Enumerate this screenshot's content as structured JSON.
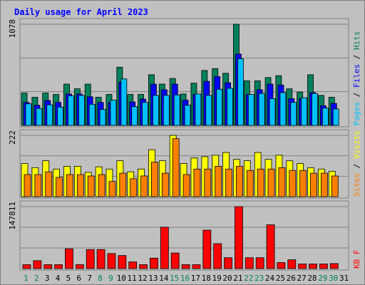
{
  "chart_data": {
    "type": "bar",
    "title": "Daily usage for April 2023",
    "categories": [
      "1",
      "2",
      "3",
      "4",
      "5",
      "6",
      "7",
      "8",
      "9",
      "10",
      "11",
      "12",
      "13",
      "14",
      "15",
      "16",
      "17",
      "18",
      "19",
      "20",
      "21",
      "22",
      "23",
      "24",
      "25",
      "26",
      "27",
      "28",
      "29",
      "30",
      "31"
    ],
    "weekend_days": [
      1,
      2,
      8,
      9,
      15,
      16,
      22,
      23,
      29,
      30
    ],
    "colors": {
      "hits": "#00805c",
      "files": "#0000ff",
      "pages": "#00c0ff",
      "visits": "#ffff00",
      "sites": "#ff8000",
      "kbytes": "#ff0000",
      "title": "#0000ff",
      "weekend_label": "#00805c",
      "weekday_label": "#000000"
    },
    "panels": [
      {
        "id": "hits",
        "ymax_label": "1078",
        "ymax": 1078,
        "axis_label_parts": [
          {
            "text": "Pages",
            "color": "#00c0ff"
          },
          {
            "text": " / ",
            "color": "#000000"
          },
          {
            "text": "Files",
            "color": "#0000ff"
          },
          {
            "text": " / ",
            "color": "#000000"
          },
          {
            "text": "Hits",
            "color": "#00805c"
          }
        ],
        "series": [
          {
            "name": "Hits",
            "color": "#00805c",
            "values": [
              345,
              300,
              345,
              330,
              440,
              390,
              440,
              300,
              330,
              620,
              330,
              330,
              540,
              440,
              500,
              335,
              450,
              585,
              605,
              555,
              1078,
              475,
              475,
              510,
              530,
              390,
              355,
              540,
              320,
              300,
              0
            ]
          },
          {
            "name": "Files",
            "color": "#0000ff",
            "values": [
              245,
              215,
              265,
              245,
              335,
              335,
              305,
              245,
              245,
              460,
              250,
              280,
              440,
              380,
              440,
              270,
              330,
              470,
              520,
              455,
              760,
              330,
              380,
              440,
              430,
              285,
              285,
              350,
              210,
              235,
              0
            ]
          },
          {
            "name": "Pages",
            "color": "#00c0ff",
            "values": [
              230,
              180,
              220,
              195,
              315,
              320,
              225,
              170,
              270,
              495,
              200,
              245,
              320,
              320,
              325,
              215,
              335,
              320,
              385,
              395,
              710,
              330,
              340,
              285,
              350,
              245,
              295,
              340,
              185,
              175,
              0
            ]
          }
        ]
      },
      {
        "id": "visits",
        "ymax_label": "222",
        "ymax": 222,
        "axis_label_parts": [
          {
            "text": "Sites",
            "color": "#ff8000"
          },
          {
            "text": " / ",
            "color": "#000000"
          },
          {
            "text": "Visits",
            "color": "#ffff00"
          }
        ],
        "series": [
          {
            "name": "Visits",
            "color": "#ffff00",
            "values": [
              120,
              105,
              130,
              100,
              110,
              110,
              88,
              108,
              100,
              130,
              90,
              100,
              170,
              130,
              222,
              120,
              140,
              145,
              150,
              160,
              135,
              130,
              160,
              135,
              150,
              130,
              120,
              105,
              100,
              92,
              0
            ]
          },
          {
            "name": "Sites",
            "color": "#ff8000",
            "values": [
              80,
              80,
              90,
              70,
              80,
              80,
              75,
              80,
              55,
              85,
              65,
              75,
              125,
              85,
              210,
              80,
              100,
              100,
              110,
              100,
              110,
              95,
              100,
              100,
              105,
              95,
              95,
              85,
              85,
              75,
              0
            ]
          }
        ]
      },
      {
        "id": "kbytes",
        "ymax_label": "147811",
        "ymax": 147811,
        "axis_label_parts": [
          {
            "text": "KB F",
            "color": "#ff0000"
          }
        ],
        "series": [
          {
            "name": "KB F",
            "color": "#ff0000",
            "values": [
              9400,
              18900,
              9400,
              9400,
              47200,
              9400,
              45400,
              45400,
              35900,
              31200,
              16000,
              9400,
              25000,
              98800,
              37300,
              9400,
              9400,
              91700,
              59500,
              26000,
              147811,
              26000,
              26000,
              104500,
              14500,
              21000,
              11000,
              11000,
              11000,
              12000,
              0
            ]
          }
        ]
      }
    ]
  }
}
